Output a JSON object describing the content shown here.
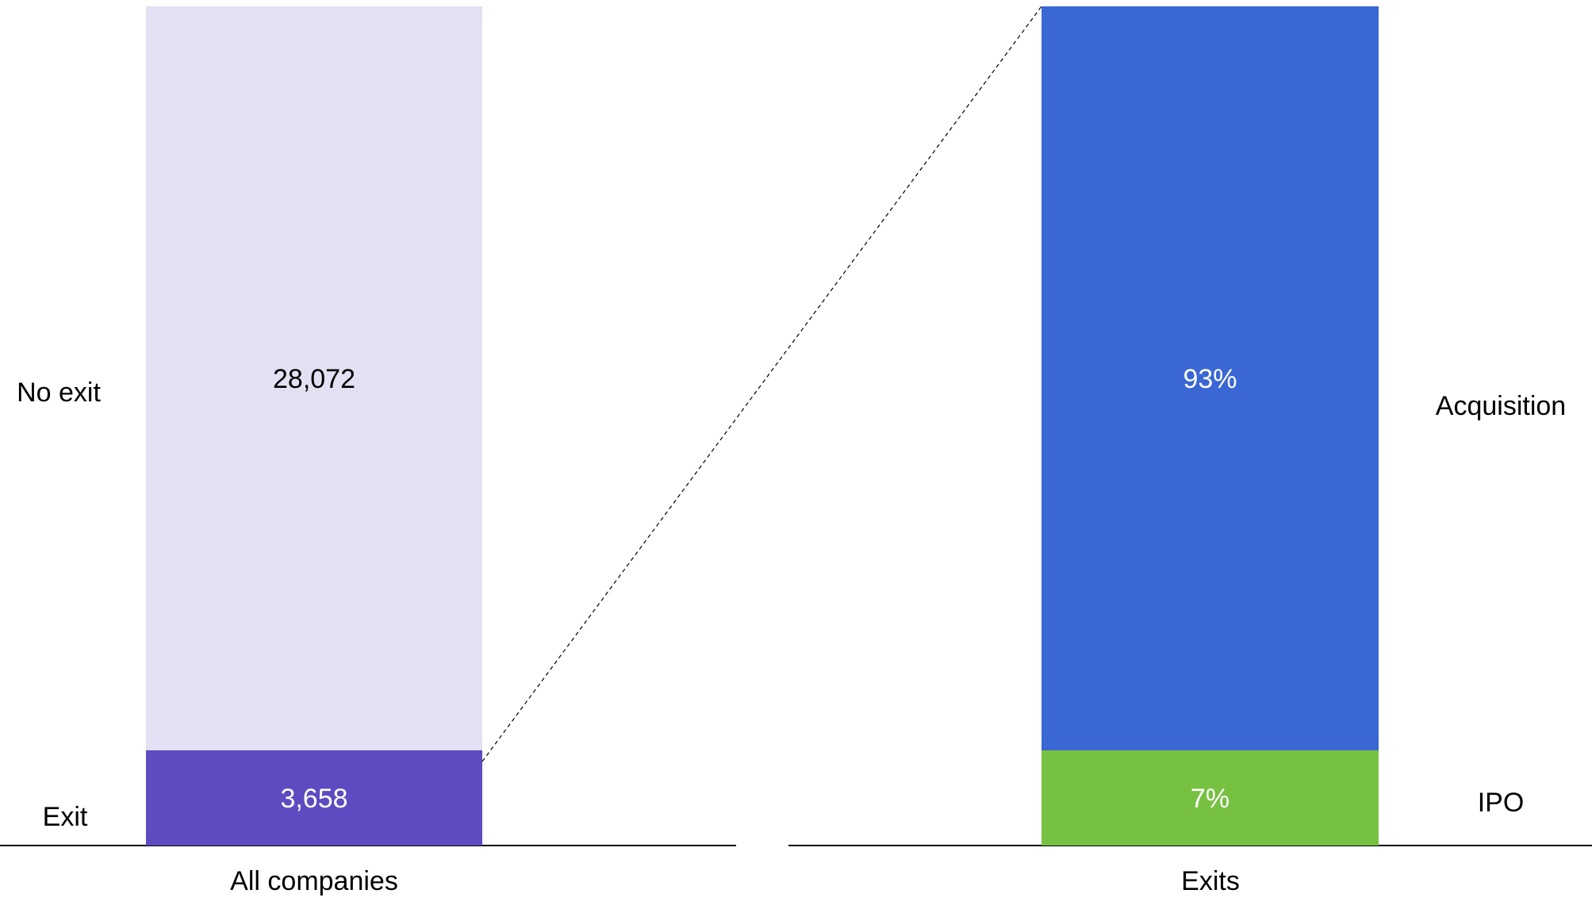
{
  "chart_data": [
    {
      "type": "bar",
      "stacked": true,
      "categories": [
        "All companies"
      ],
      "series": [
        {
          "name": "Exit",
          "values": [
            3658
          ],
          "label": "3,658",
          "color": "#5e4bc1"
        },
        {
          "name": "No exit",
          "values": [
            28072
          ],
          "label": "28,072",
          "color": "#e2e0f2"
        }
      ],
      "grid": false
    },
    {
      "type": "bar",
      "stacked": true,
      "categories": [
        "Exits"
      ],
      "unit": "%",
      "series": [
        {
          "name": "IPO",
          "values": [
            7
          ],
          "label": "7%",
          "color": "#77c142"
        },
        {
          "name": "Acquisition",
          "values": [
            93
          ],
          "label": "93%",
          "color": "#3a67d4"
        }
      ],
      "grid": false
    }
  ]
}
